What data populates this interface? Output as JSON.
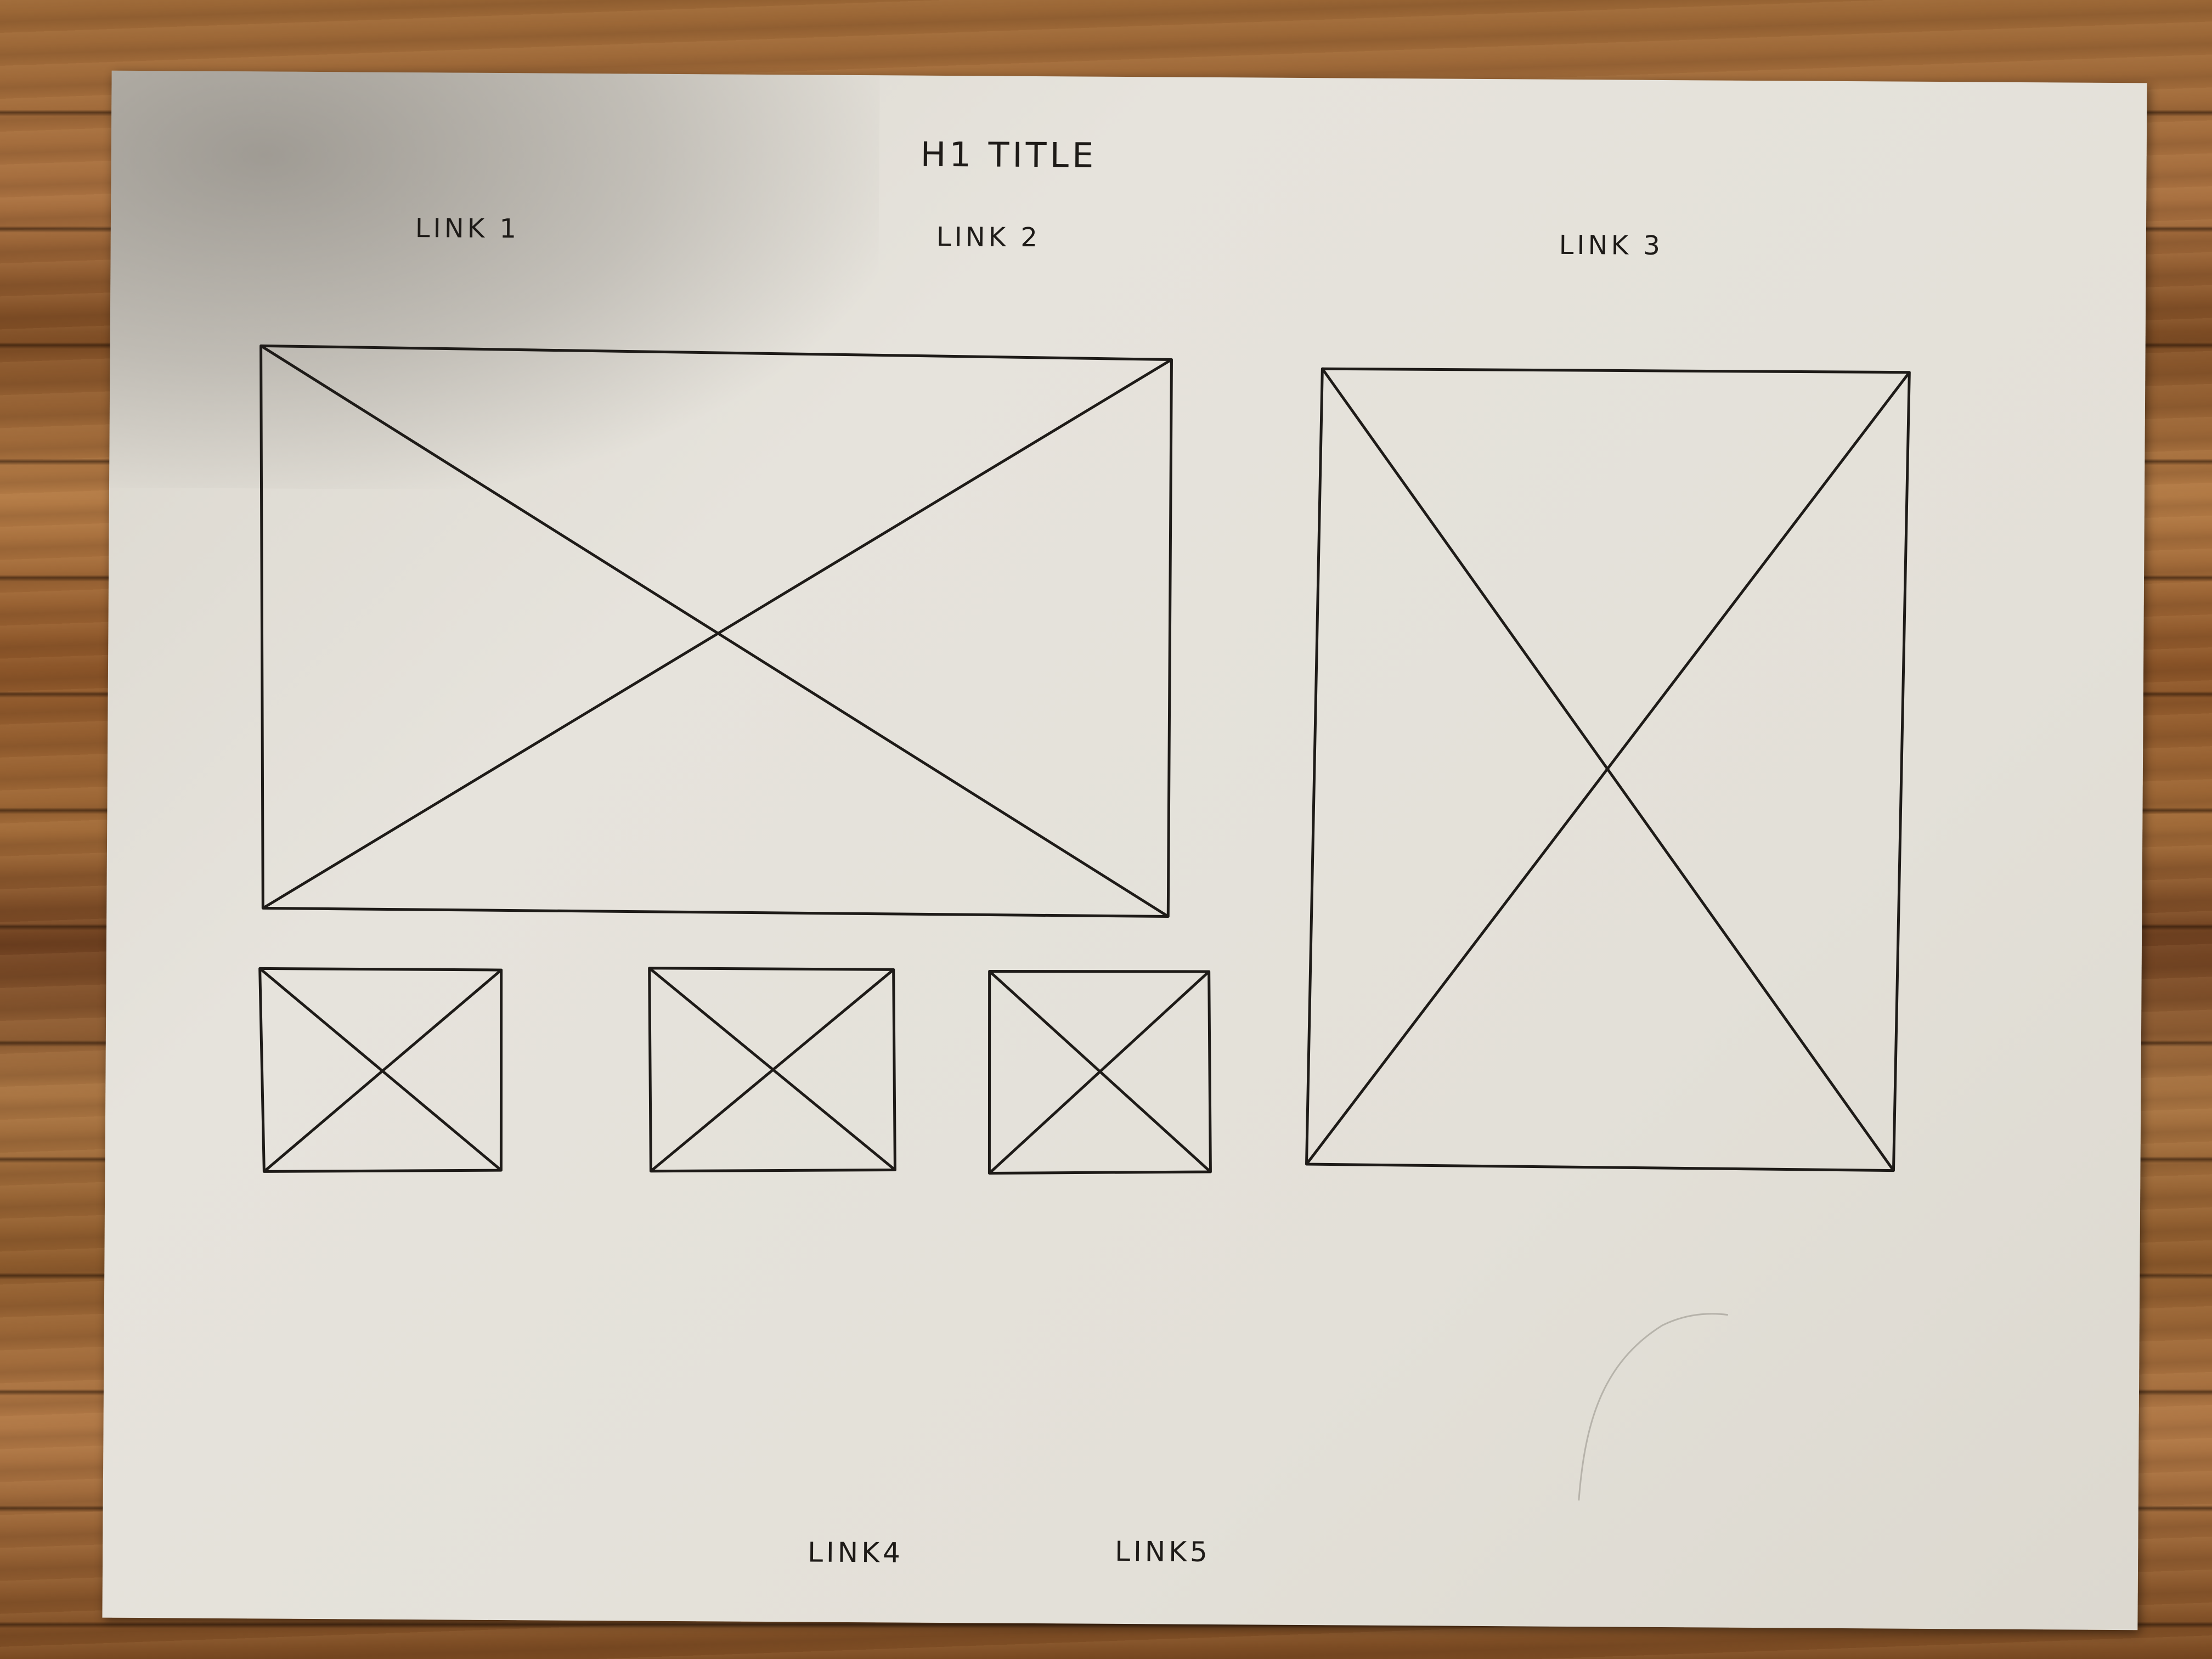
{
  "title": "H1 TITLE",
  "top_links": [
    {
      "label": "LINK 1"
    },
    {
      "label": "LINK 2"
    },
    {
      "label": "LINK 3"
    }
  ],
  "bottom_links": [
    {
      "label": "LINK4"
    },
    {
      "label": "LINK5"
    }
  ],
  "ink_color": "#1e1b18",
  "paper_color": "#e3e0d8"
}
